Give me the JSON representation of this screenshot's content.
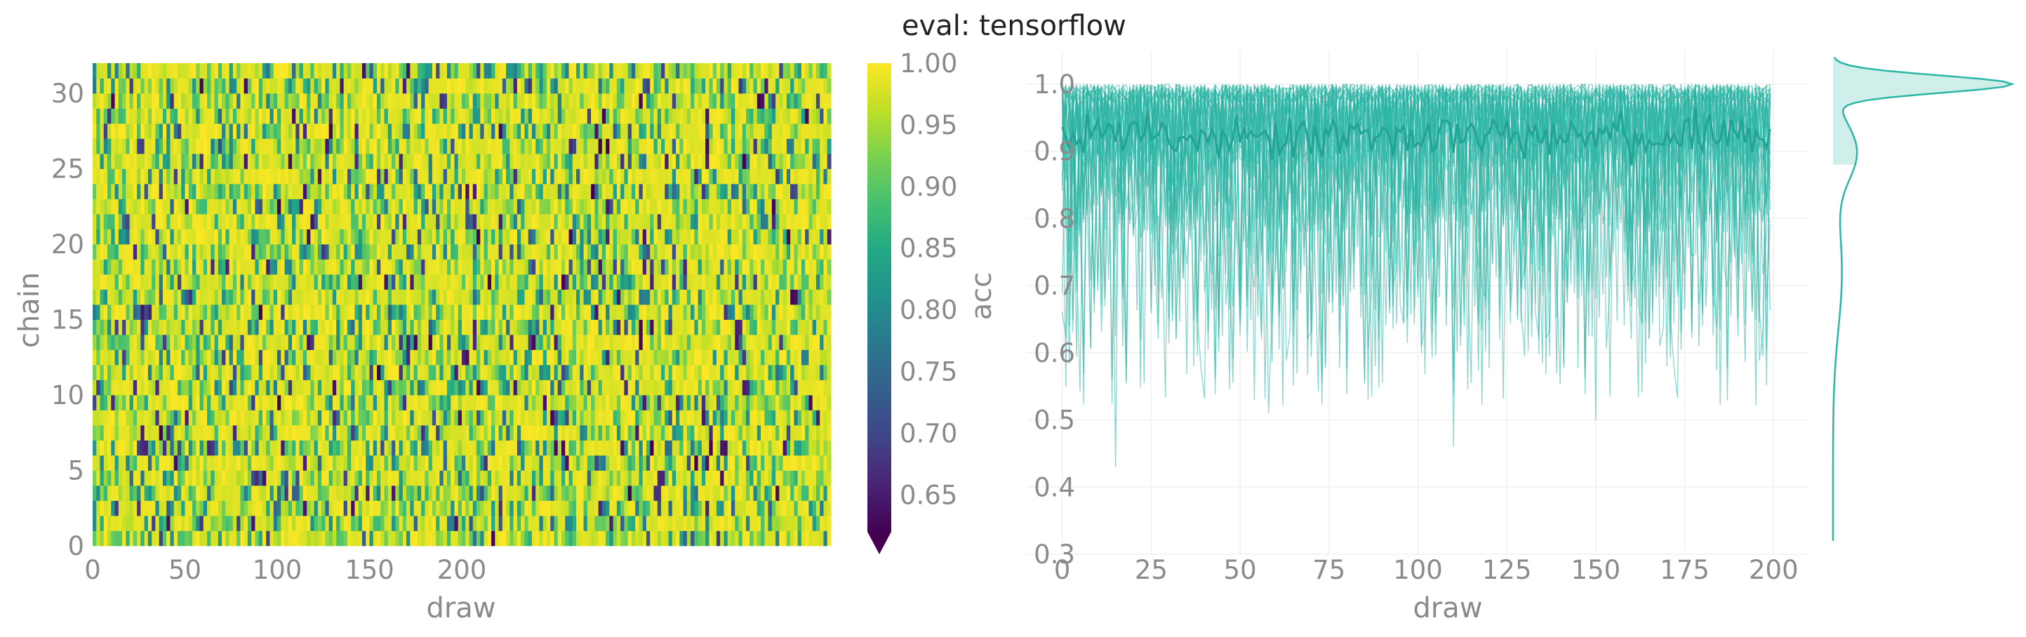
{
  "title": "eval: tensorflow",
  "chart_data": [
    {
      "type": "heatmap",
      "xlabel": "draw",
      "ylabel": "chain",
      "x_ticks": [
        0,
        50,
        100,
        150,
        200
      ],
      "y_ticks": [
        0,
        5,
        10,
        15,
        20,
        25,
        30
      ],
      "n_chains": 32,
      "n_draws": 200,
      "xlim": [
        0,
        400
      ],
      "colormap": "viridis",
      "colorbar": {
        "label": "acc",
        "range": [
          0.62,
          1.0
        ],
        "ticks": [
          "1.00",
          "0.95",
          "0.90",
          "0.85",
          "0.80",
          "0.75",
          "0.70",
          "0.65"
        ],
        "extend": "min"
      },
      "value_summary": {
        "mean": 0.915,
        "min": 0.43,
        "max": 1.0
      }
    },
    {
      "type": "line",
      "xlabel": "draw",
      "ylabel": "",
      "x_ticks": [
        0,
        25,
        50,
        75,
        100,
        125,
        150,
        175,
        200
      ],
      "y_ticks": [
        "1.0",
        "0.9",
        "0.8",
        "0.7",
        "0.6",
        "0.5",
        "0.4",
        "0.3"
      ],
      "xlim": [
        -10,
        210
      ],
      "ylim": [
        0.3,
        1.05
      ],
      "n_series": 32,
      "series_color": "#2bb5a4",
      "mean_line": {
        "approx_value": 0.915
      },
      "extremes": [
        {
          "draw": 15,
          "acc": 0.43
        },
        {
          "draw": 110,
          "acc": 0.46
        },
        {
          "draw": 150,
          "acc": 0.5
        },
        {
          "draw": 58,
          "acc": 0.51
        }
      ],
      "marginal_density": {
        "type": "kde",
        "peak_acc": 1.0,
        "support": [
          0.32,
          1.04
        ]
      }
    }
  ]
}
